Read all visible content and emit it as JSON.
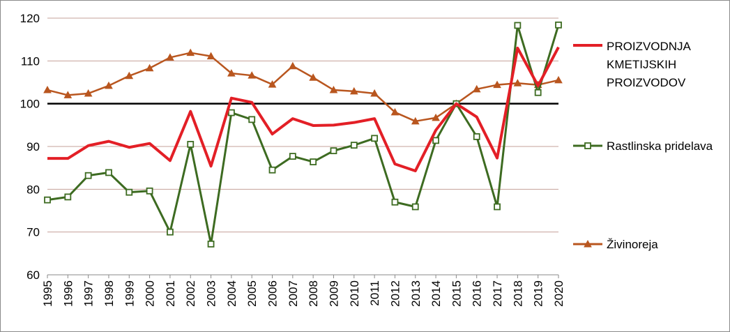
{
  "chart_data": {
    "type": "line",
    "title": "",
    "xlabel": "",
    "ylabel": "",
    "ylim": [
      60,
      120
    ],
    "yticks": [
      60,
      70,
      80,
      90,
      100,
      110,
      120
    ],
    "grid": true,
    "legend_position": "right",
    "reference_line": 100,
    "categories": [
      "1995",
      "1996",
      "1997",
      "1998",
      "1999",
      "2000",
      "2001",
      "2002",
      "2003",
      "2004",
      "2005",
      "2006",
      "2007",
      "2008",
      "2009",
      "2010",
      "2011",
      "2012",
      "2013",
      "2014",
      "2015",
      "2016",
      "2017",
      "2018",
      "2019",
      "2020"
    ],
    "series": [
      {
        "name": "PROIZVODNJA KMETIJSKIH PROIZVODOV",
        "legend_lines": [
          "PROIZVODNJA",
          "KMETIJSKIH",
          "PROIZVODOV"
        ],
        "color": "#e31f26",
        "marker": "none",
        "values": [
          87.2,
          87.2,
          90.2,
          91.2,
          89.8,
          90.7,
          86.7,
          98.2,
          85.4,
          101.3,
          100.3,
          92.9,
          96.5,
          94.9,
          95.0,
          95.6,
          96.5,
          85.9,
          84.3,
          93.8,
          100.0,
          96.9,
          87.3,
          113.0,
          104.2,
          113.2
        ]
      },
      {
        "name": "Rastlinska pridelava",
        "legend_lines": [
          "Rastlinska pridelava"
        ],
        "color": "#3d6b21",
        "marker": "square",
        "values": [
          77.5,
          78.2,
          83.2,
          83.9,
          79.3,
          79.6,
          70.0,
          90.5,
          67.2,
          97.9,
          96.3,
          84.5,
          87.7,
          86.4,
          89.0,
          90.3,
          91.9,
          77.0,
          75.9,
          91.4,
          100.0,
          92.3,
          75.9,
          118.3,
          102.6,
          118.4
        ]
      },
      {
        "name": "Živinoreja",
        "legend_lines": [
          "Živinoreja"
        ],
        "color": "#b9561f",
        "marker": "triangle",
        "values": [
          103.2,
          102.0,
          102.4,
          104.2,
          106.5,
          108.3,
          110.8,
          111.9,
          111.1,
          107.1,
          106.6,
          104.5,
          108.8,
          106.1,
          103.2,
          102.9,
          102.4,
          98.0,
          95.9,
          96.7,
          100.0,
          103.4,
          104.4,
          104.8,
          104.4,
          105.5
        ]
      }
    ]
  }
}
